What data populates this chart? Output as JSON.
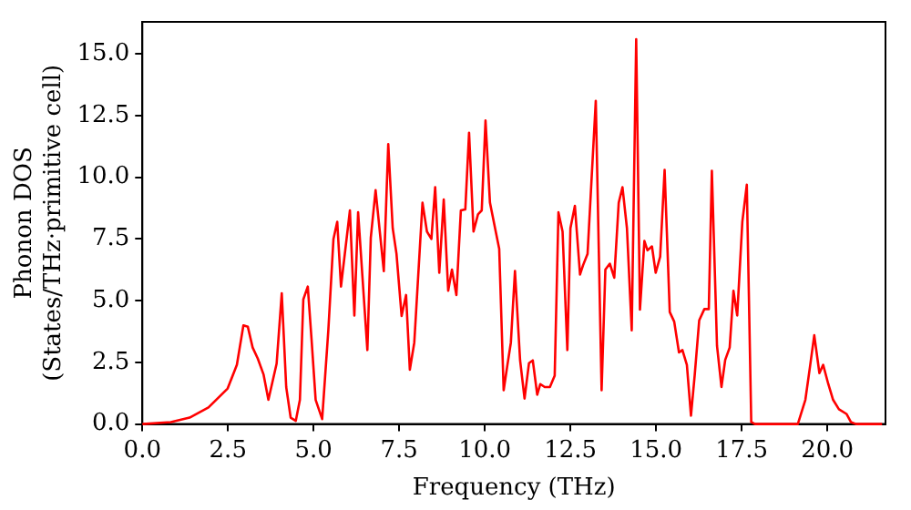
{
  "chart_data": {
    "type": "line",
    "xlabel": "Frequency (THz)",
    "ylabel": "Phonon DOS\n(States/THz·primitive cell)",
    "x": [
      0,
      0.83,
      1.38,
      1.93,
      2.49,
      2.76,
      2.95,
      3.08,
      3.22,
      3.37,
      3.54,
      3.68,
      3.92,
      4.07,
      4.2,
      4.33,
      4.48,
      4.6,
      4.7,
      4.83,
      4.94,
      5.06,
      5.25,
      5.43,
      5.58,
      5.69,
      5.8,
      6.06,
      6.19,
      6.3,
      6.57,
      6.67,
      6.81,
      7.05,
      7.18,
      7.31,
      7.42,
      7.57,
      7.7,
      7.81,
      7.94,
      8.18,
      8.31,
      8.44,
      8.55,
      8.67,
      8.8,
      8.93,
      9.04,
      9.17,
      9.3,
      9.43,
      9.54,
      9.67,
      9.8,
      9.91,
      10.02,
      10.15,
      10.42,
      10.55,
      10.66,
      10.76,
      10.88,
      11.03,
      11.16,
      11.29,
      11.4,
      11.53,
      11.62,
      11.75,
      11.9,
      12.04,
      12.15,
      12.27,
      12.41,
      12.5,
      12.63,
      12.78,
      12.87,
      13.0,
      13.24,
      13.41,
      13.52,
      13.65,
      13.78,
      13.91,
      14.02,
      14.15,
      14.29,
      14.42,
      14.53,
      14.66,
      14.75,
      14.88,
      14.99,
      15.12,
      15.25,
      15.4,
      15.53,
      15.67,
      15.77,
      15.9,
      16.02,
      16.13,
      16.26,
      16.41,
      16.54,
      16.63,
      16.78,
      16.91,
      17.02,
      17.15,
      17.26,
      17.37,
      17.52,
      17.65,
      17.78,
      17.89,
      19.14,
      19.36,
      19.49,
      19.62,
      19.77,
      19.88,
      20.03,
      20.17,
      20.34,
      20.56,
      20.69,
      20.84,
      21.6
    ],
    "series": [
      {
        "color": "#ff0000",
        "values": [
          0,
          0.08,
          0.26,
          0.67,
          1.44,
          2.4,
          4.0,
          3.94,
          3.1,
          2.65,
          2.0,
          0.98,
          2.45,
          5.3,
          1.5,
          0.26,
          0.13,
          0.98,
          5.05,
          5.57,
          3.43,
          0.98,
          0.2,
          3.8,
          7.5,
          8.2,
          5.57,
          8.66,
          4.4,
          8.58,
          3.0,
          7.55,
          9.48,
          6.2,
          11.34,
          7.94,
          6.9,
          4.38,
          5.23,
          2.2,
          3.3,
          8.97,
          7.8,
          7.5,
          9.6,
          6.13,
          9.1,
          5.4,
          6.26,
          5.23,
          8.66,
          8.7,
          11.8,
          7.8,
          8.5,
          8.66,
          12.3,
          8.97,
          7.1,
          1.37,
          2.4,
          3.3,
          6.2,
          2.58,
          1.03,
          2.47,
          2.58,
          1.19,
          1.62,
          1.5,
          1.5,
          1.96,
          8.58,
          7.8,
          3.0,
          7.94,
          8.84,
          6.06,
          6.44,
          6.9,
          13.1,
          1.37,
          6.26,
          6.5,
          5.93,
          8.97,
          9.6,
          7.94,
          3.8,
          15.6,
          4.64,
          7.42,
          7.04,
          7.2,
          6.13,
          6.78,
          10.3,
          4.54,
          4.15,
          2.9,
          3.0,
          2.4,
          0.34,
          2.0,
          4.2,
          4.66,
          4.66,
          10.26,
          3.17,
          1.5,
          2.6,
          3.1,
          5.4,
          4.4,
          8.2,
          9.7,
          0.08,
          0,
          0,
          0.98,
          2.27,
          3.6,
          2.06,
          2.4,
          1.62,
          0.98,
          0.6,
          0.41,
          0.08,
          0,
          0
        ]
      }
    ],
    "xlim": [
      0,
      21.7
    ],
    "ylim": [
      0,
      16.3
    ],
    "xticks": [
      {
        "value": 0,
        "label": "0.0"
      },
      {
        "value": 2.5,
        "label": "2.5"
      },
      {
        "value": 5,
        "label": "5.0"
      },
      {
        "value": 7.5,
        "label": "7.5"
      },
      {
        "value": 10,
        "label": "10.0"
      },
      {
        "value": 12.5,
        "label": "12.5"
      },
      {
        "value": 15,
        "label": "15.0"
      },
      {
        "value": 17.5,
        "label": "17.5"
      },
      {
        "value": 20,
        "label": "20.0"
      }
    ],
    "yticks": [
      {
        "value": 0,
        "label": "0.0"
      },
      {
        "value": 2.5,
        "label": "2.5"
      },
      {
        "value": 5,
        "label": "5.0"
      },
      {
        "value": 7.5,
        "label": "7.5"
      },
      {
        "value": 10,
        "label": "10.0"
      },
      {
        "value": 12.5,
        "label": "12.5"
      },
      {
        "value": 15,
        "label": "15.0"
      }
    ],
    "grid": false,
    "legend": false,
    "marker": "none",
    "line_style": "solid"
  }
}
